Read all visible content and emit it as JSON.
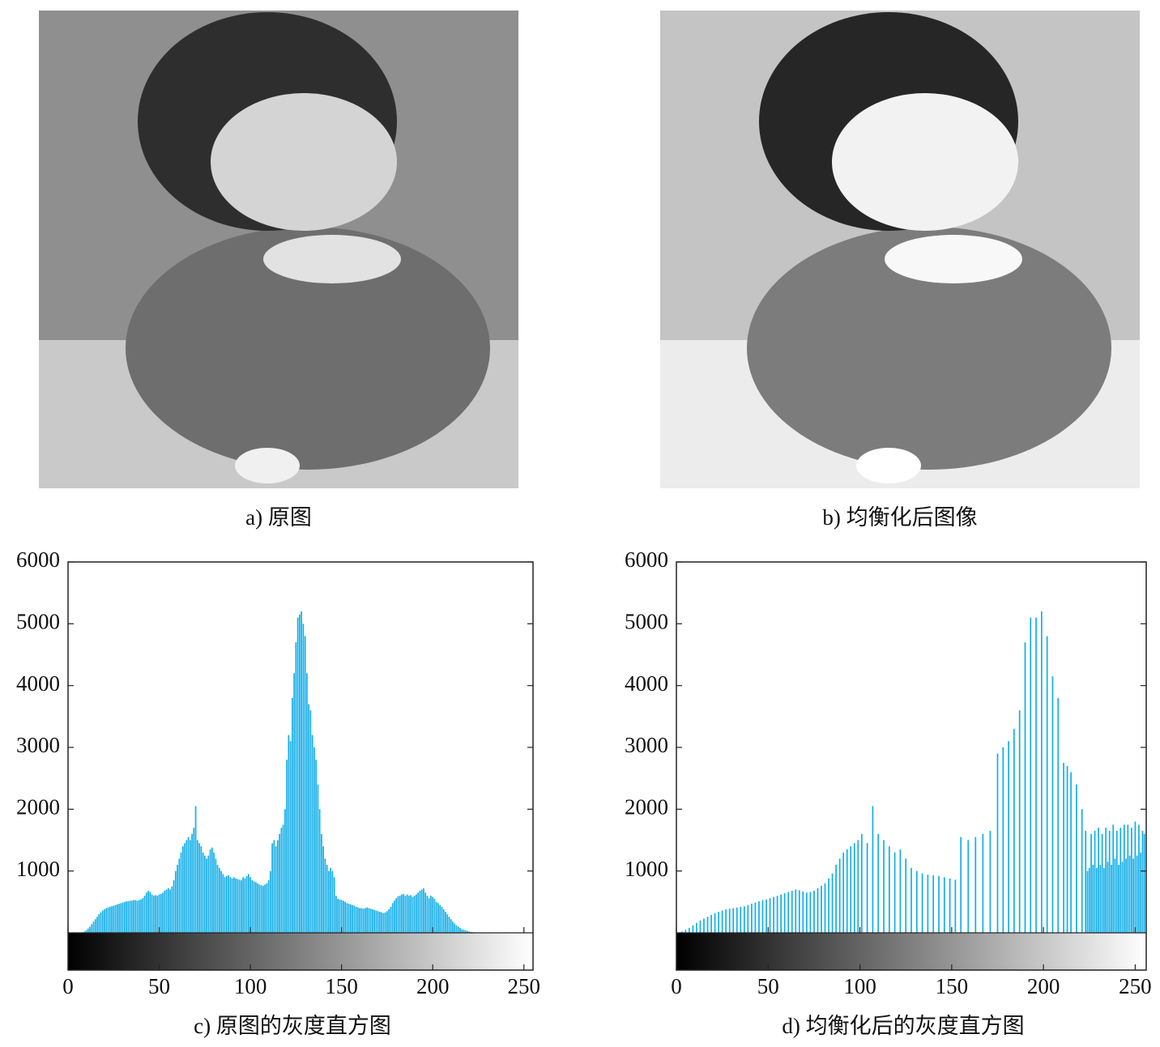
{
  "images": [
    {
      "caption": "a) 原图"
    },
    {
      "caption": "b) 均衡化后图像"
    }
  ],
  "chart_data": [
    {
      "type": "bar",
      "caption": "c) 原图的灰度直方图",
      "color": "#12aee8",
      "xlim": [
        0,
        255
      ],
      "xticks": [
        0,
        50,
        100,
        150,
        200,
        250
      ],
      "ylim": [
        0,
        6000
      ],
      "yticks": [
        1000,
        2000,
        3000,
        4000,
        5000,
        6000
      ],
      "values": [
        0,
        0,
        0,
        0,
        0,
        0,
        0,
        0,
        10,
        20,
        40,
        70,
        100,
        140,
        180,
        220,
        260,
        300,
        330,
        360,
        380,
        400,
        410,
        420,
        430,
        440,
        450,
        460,
        470,
        480,
        490,
        500,
        510,
        510,
        520,
        520,
        530,
        530,
        520,
        530,
        540,
        560,
        600,
        650,
        680,
        660,
        620,
        600,
        610,
        600,
        620,
        630,
        650,
        680,
        700,
        720,
        700,
        750,
        850,
        1000,
        1100,
        1200,
        1300,
        1400,
        1450,
        1500,
        1550,
        1500,
        1600,
        1700,
        2050,
        1500,
        1450,
        1400,
        1300,
        1250,
        1200,
        1250,
        1350,
        1380,
        1300,
        1200,
        1100,
        1050,
        1000,
        950,
        900,
        920,
        930,
        900,
        880,
        900,
        880,
        870,
        860,
        850,
        900,
        880,
        920,
        950,
        900,
        850,
        830,
        820,
        800,
        780,
        770,
        760,
        780,
        800,
        850,
        1000,
        1450,
        1500,
        1400,
        1500,
        1600,
        1700,
        1750,
        2000,
        2800,
        3200,
        3100,
        3800,
        4200,
        4700,
        5100,
        5150,
        5200,
        5000,
        4800,
        4200,
        3700,
        3600,
        3200,
        3000,
        2800,
        2400,
        2000,
        1600,
        1400,
        1200,
        1100,
        1000,
        1050,
        1000,
        900,
        600,
        550,
        540,
        530,
        520,
        500,
        480,
        470,
        460,
        450,
        440,
        420,
        410,
        400,
        400,
        390,
        400,
        410,
        400,
        390,
        380,
        370,
        360,
        350,
        340,
        330,
        320,
        330,
        350,
        380,
        420,
        480,
        520,
        560,
        590,
        600,
        620,
        630,
        600,
        620,
        600,
        610,
        580,
        600,
        620,
        650,
        680,
        700,
        720,
        650,
        600,
        560,
        600,
        580,
        550,
        500,
        480,
        450,
        420,
        380,
        340,
        300,
        260,
        220,
        180,
        150,
        120,
        100,
        80,
        60,
        50,
        40,
        30,
        20,
        15,
        10,
        8,
        6,
        5,
        4,
        3,
        2,
        2,
        1,
        1,
        1,
        0,
        0,
        0,
        0,
        0,
        0,
        0,
        0,
        0,
        0,
        0,
        0,
        0,
        0,
        0,
        0,
        0,
        0,
        0,
        0,
        0,
        0,
        0
      ]
    },
    {
      "type": "bar",
      "caption": "d) 均衡化后的灰度直方图",
      "color": "#12aee8",
      "xlim": [
        0,
        256
      ],
      "xticks": [
        0,
        50,
        100,
        150,
        200,
        250
      ],
      "ylim": [
        0,
        6000
      ],
      "yticks": [
        1000,
        2000,
        3000,
        4000,
        5000,
        6000
      ],
      "values": [
        0,
        0,
        0,
        20,
        0,
        50,
        0,
        80,
        0,
        120,
        0,
        160,
        0,
        200,
        0,
        230,
        0,
        260,
        0,
        290,
        0,
        320,
        0,
        340,
        0,
        360,
        0,
        380,
        0,
        390,
        0,
        400,
        0,
        410,
        0,
        420,
        0,
        430,
        0,
        450,
        0,
        470,
        0,
        490,
        0,
        510,
        0,
        530,
        0,
        540,
        0,
        560,
        0,
        580,
        0,
        600,
        0,
        620,
        0,
        640,
        0,
        660,
        0,
        680,
        0,
        700,
        0,
        690,
        0,
        670,
        0,
        650,
        0,
        660,
        0,
        680,
        0,
        720,
        0,
        760,
        0,
        800,
        0,
        880,
        0,
        960,
        0,
        1100,
        0,
        1200,
        0,
        1300,
        0,
        1350,
        0,
        1400,
        0,
        1450,
        0,
        1500,
        0,
        1600,
        0,
        0,
        1450,
        0,
        0,
        2050,
        0,
        0,
        1600,
        0,
        0,
        1500,
        0,
        0,
        1400,
        0,
        0,
        1300,
        0,
        0,
        1350,
        0,
        0,
        1200,
        0,
        0,
        1050,
        0,
        0,
        1000,
        0,
        0,
        960,
        0,
        0,
        940,
        0,
        0,
        930,
        0,
        0,
        920,
        0,
        0,
        900,
        0,
        0,
        880,
        0,
        0,
        860,
        0,
        0,
        1550,
        0,
        0,
        0,
        1500,
        0,
        0,
        0,
        1550,
        0,
        0,
        0,
        1600,
        0,
        0,
        0,
        1650,
        0,
        0,
        0,
        2900,
        0,
        0,
        3000,
        0,
        0,
        3100,
        0,
        0,
        3300,
        0,
        0,
        3600,
        0,
        0,
        4700,
        0,
        0,
        5100,
        0,
        0,
        5100,
        0,
        0,
        5200,
        0,
        0,
        4800,
        0,
        0,
        4150,
        0,
        0,
        3800,
        0,
        0,
        2750,
        0,
        2700,
        0,
        2600,
        0,
        0,
        2400,
        0,
        0,
        2000,
        0,
        1650,
        1000,
        1050,
        1600,
        1100,
        1650,
        1050,
        1700,
        1100,
        1600,
        1050,
        1700,
        1150,
        1650,
        1100,
        1750,
        1200,
        1650,
        1100,
        1700,
        1150,
        1750,
        1200,
        1750,
        1250,
        1700,
        1200,
        1800,
        1250,
        1750,
        1300,
        1650,
        1600
      ]
    }
  ]
}
